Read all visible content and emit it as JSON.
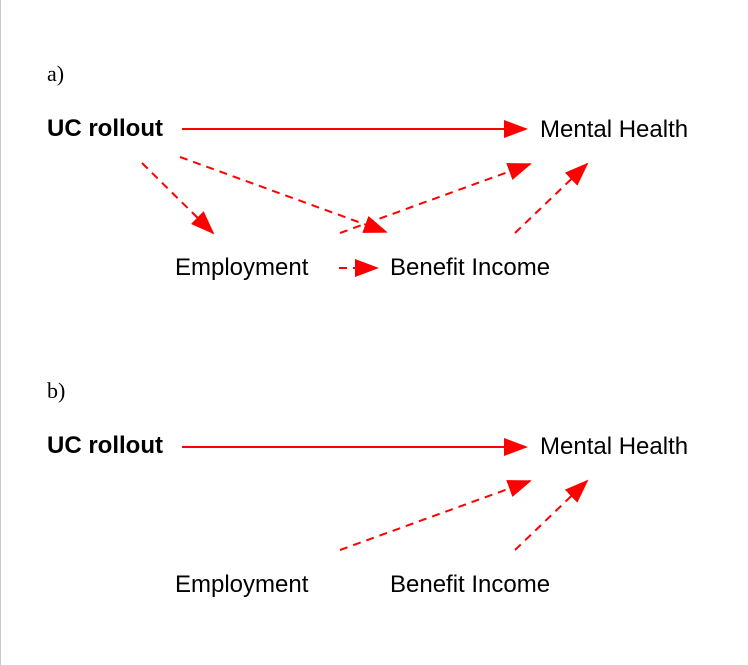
{
  "panel_a": {
    "label": "a)",
    "nodes": {
      "uc_rollout": "UC rollout",
      "mental_health": "Mental Health",
      "employment": "Employment",
      "benefit_income": "Benefit Income"
    }
  },
  "panel_b": {
    "label": "b)",
    "nodes": {
      "uc_rollout": "UC rollout",
      "mental_health": "Mental Health",
      "employment": "Employment",
      "benefit_income": "Benefit Income"
    }
  },
  "colors": {
    "arrow": "#ff0000"
  }
}
